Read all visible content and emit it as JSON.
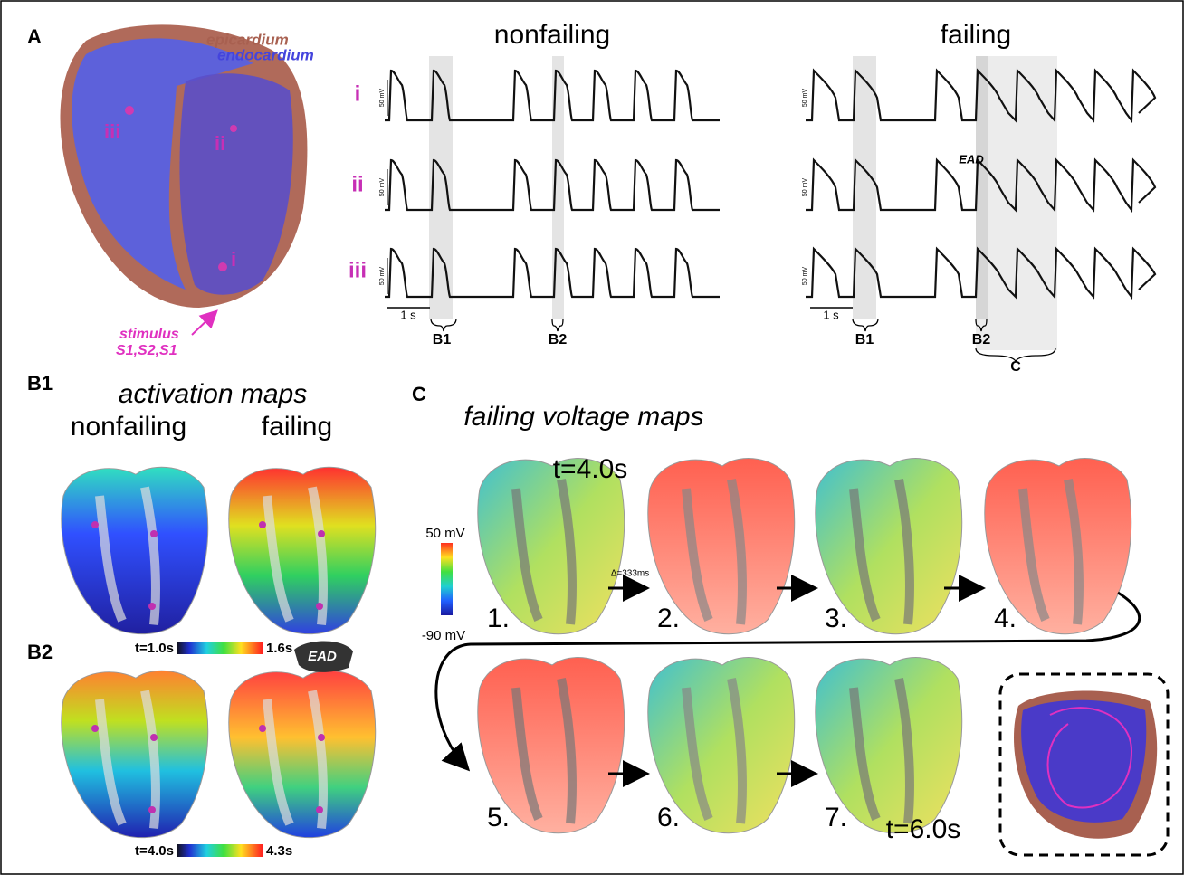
{
  "panel_labels": {
    "a": "A",
    "b1": "B1",
    "b2": "B2",
    "c": "C"
  },
  "panel_a": {
    "epicardium": "epicardium",
    "endocardium": "endocardium",
    "heart_sites": [
      "iii",
      "ii",
      "i"
    ],
    "stimulus": "stimulus",
    "stimulus_sequence": "S1,S2,S1",
    "traces": {
      "titles": [
        "nonfailing",
        "failing"
      ],
      "rows": [
        "i",
        "ii",
        "iii"
      ],
      "scale_label": "50 mV",
      "time_scale": "1 s",
      "windows": [
        "B1",
        "B2"
      ],
      "window_c": "C",
      "ead": "EAD"
    }
  },
  "panel_b": {
    "title": "activation maps",
    "columns": [
      "nonfailing",
      "failing"
    ],
    "b1_colorbar": [
      "t=1.0s",
      "1.6s"
    ],
    "b2_colorbar": [
      "t=4.0s",
      "4.3s"
    ],
    "ead": "EAD"
  },
  "panel_c": {
    "title": "failing voltage maps",
    "start_time": "t=4.0s",
    "end_time": "t=6.0s",
    "colorbar": [
      "50 mV",
      "-90 mV"
    ],
    "interval": "Δ=333ms",
    "steps": [
      "1.",
      "2.",
      "3.",
      "4.",
      "5.",
      "6.",
      "7."
    ]
  }
}
